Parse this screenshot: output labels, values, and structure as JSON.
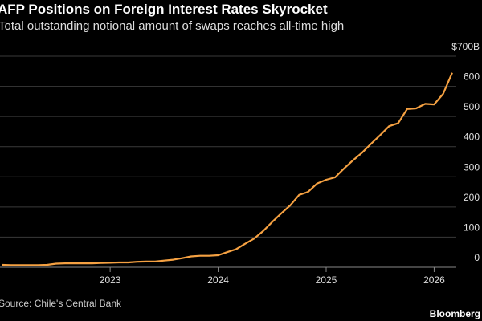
{
  "chart_data": {
    "type": "line",
    "title": "AFP Positions on Foreign Interest Rates Skyrocket",
    "subtitle": "Total outstanding notional amount of swaps reaches all-time high",
    "source": "Source: Chile's Central Bank",
    "brand": "Bloomberg",
    "x": [
      2022.0,
      2022.083,
      2022.167,
      2022.25,
      2022.333,
      2022.417,
      2022.5,
      2022.583,
      2022.667,
      2022.75,
      2022.833,
      2022.917,
      2023.0,
      2023.083,
      2023.167,
      2023.25,
      2023.333,
      2023.417,
      2023.5,
      2023.583,
      2023.667,
      2023.75,
      2023.833,
      2023.917,
      2024.0,
      2024.083,
      2024.167,
      2024.25,
      2024.333,
      2024.417,
      2024.5,
      2024.583,
      2024.667,
      2024.75,
      2024.833,
      2024.917,
      2025.0,
      2025.083,
      2025.167,
      2025.25,
      2025.333,
      2025.417,
      2025.5,
      2025.583,
      2025.667,
      2025.75,
      2025.833,
      2025.917,
      2026.0,
      2026.083,
      2026.167
    ],
    "series": [
      {
        "name": "Notional amount",
        "color": "#f5a142",
        "values": [
          8,
          7,
          7,
          7,
          7,
          8,
          12,
          13,
          13,
          13,
          13,
          14,
          15,
          16,
          16,
          18,
          19,
          19,
          22,
          25,
          30,
          36,
          38,
          38,
          40,
          50,
          60,
          78,
          95,
          120,
          150,
          178,
          205,
          240,
          250,
          278,
          290,
          298,
          328,
          355,
          380,
          410,
          438,
          468,
          478,
          525,
          527,
          542,
          540,
          575,
          645
        ]
      }
    ],
    "xlim": [
      2021.98,
      2026.22
    ],
    "xticks": [
      2023,
      2024,
      2025,
      2026
    ],
    "ylim": [
      0,
      700
    ],
    "yticks": [
      0,
      100,
      200,
      300,
      400,
      500,
      600,
      {
        "value": 700,
        "label": "$700B"
      }
    ],
    "grid": true
  }
}
